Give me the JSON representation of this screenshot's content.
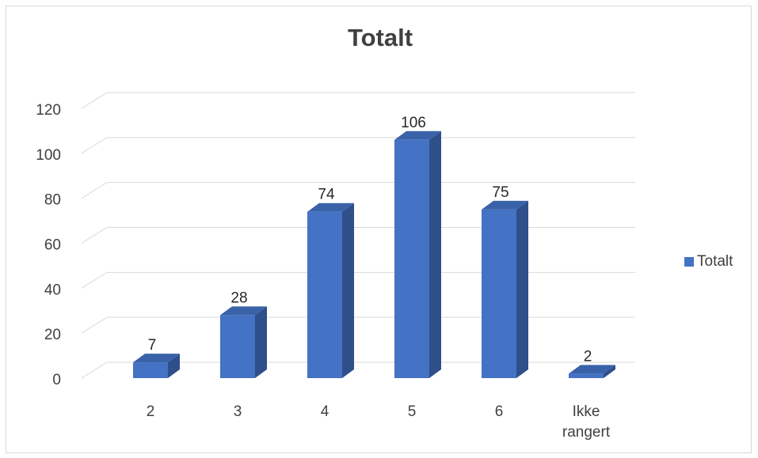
{
  "chart_data": {
    "type": "bar",
    "title": "Totalt",
    "categories": [
      "2",
      "3",
      "4",
      "5",
      "6",
      "Ikke rangert"
    ],
    "series": [
      {
        "name": "Totalt",
        "values": [
          7,
          28,
          74,
          106,
          75,
          2
        ]
      }
    ],
    "data_labels": [
      "7",
      "28",
      "74",
      "106",
      "75",
      "2"
    ],
    "y_ticks": [
      "0",
      "20",
      "40",
      "60",
      "80",
      "100",
      "120"
    ],
    "ylim": [
      0,
      120
    ],
    "xlabel": "",
    "ylabel": "",
    "grid": true,
    "legend_position": "right",
    "style": "3d-column",
    "colors": {
      "bar_front": "#4472c4",
      "bar_side": "#2f4f8a",
      "bar_top": "#3a62a8",
      "grid": "#d9d9d9",
      "text": "#404040"
    }
  }
}
